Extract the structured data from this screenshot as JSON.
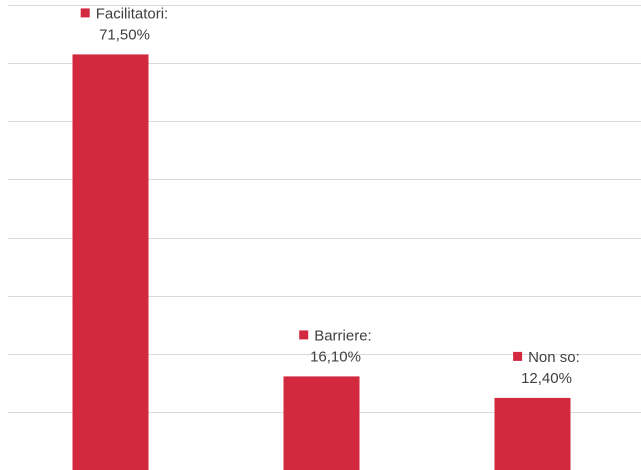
{
  "chart_data": {
    "type": "bar",
    "categories": [
      "Facilitatori",
      "Barriere",
      "Non so"
    ],
    "values": [
      71.5,
      16.1,
      12.4
    ],
    "data_labels": [
      {
        "category_text": "Facilitatori:",
        "value_text": "71,50%"
      },
      {
        "category_text": "Barriere:",
        "value_text": "16,10%"
      },
      {
        "category_text": "Non so:",
        "value_text": "12,40%"
      }
    ],
    "ylim": [
      0,
      80
    ],
    "grid": true,
    "colors": {
      "bar": "#D2293F",
      "grid": "#D9D9D9",
      "label_text": "#404040"
    }
  }
}
